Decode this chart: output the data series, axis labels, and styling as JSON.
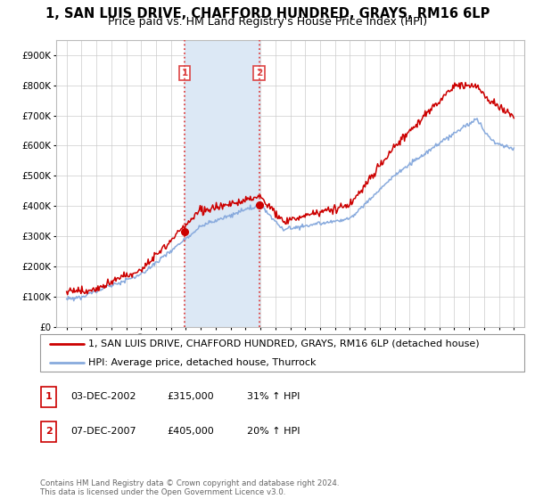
{
  "title": "1, SAN LUIS DRIVE, CHAFFORD HUNDRED, GRAYS, RM16 6LP",
  "subtitle": "Price paid vs. HM Land Registry's House Price Index (HPI)",
  "ylim": [
    0,
    950000
  ],
  "yticks": [
    0,
    100000,
    200000,
    300000,
    400000,
    500000,
    600000,
    700000,
    800000,
    900000
  ],
  "ytick_labels": [
    "£0",
    "£100K",
    "£200K",
    "£300K",
    "£400K",
    "£500K",
    "£600K",
    "£700K",
    "£800K",
    "£900K"
  ],
  "line1_color": "#cc0000",
  "line2_color": "#88aadd",
  "shade_color": "#dce8f5",
  "vline_color": "#dd4444",
  "marker_color": "#cc0000",
  "sale1_x": 2002.92,
  "sale1_y": 315000,
  "sale2_x": 2007.92,
  "sale2_y": 405000,
  "sale1_label": "1",
  "sale2_label": "2",
  "vline1_x": 2002.92,
  "vline2_x": 2007.92,
  "shade_x1": 2002.92,
  "shade_x2": 2007.92,
  "legend_line1": "1, SAN LUIS DRIVE, CHAFFORD HUNDRED, GRAYS, RM16 6LP (detached house)",
  "legend_line2": "HPI: Average price, detached house, Thurrock",
  "note1_label": "1",
  "note1_date": "03-DEC-2002",
  "note1_price": "£315,000",
  "note1_hpi": "31% ↑ HPI",
  "note2_label": "2",
  "note2_date": "07-DEC-2007",
  "note2_price": "£405,000",
  "note2_hpi": "20% ↑ HPI",
  "footer": "Contains HM Land Registry data © Crown copyright and database right 2024.\nThis data is licensed under the Open Government Licence v3.0.",
  "title_fontsize": 10.5,
  "subtitle_fontsize": 9,
  "tick_fontsize": 7.5,
  "label_fontsize": 8,
  "legend_fontsize": 8,
  "xtick_start": 1995,
  "xtick_end": 2025,
  "xtick_step": 1,
  "xlim_left": 1994.3,
  "xlim_right": 2025.7
}
